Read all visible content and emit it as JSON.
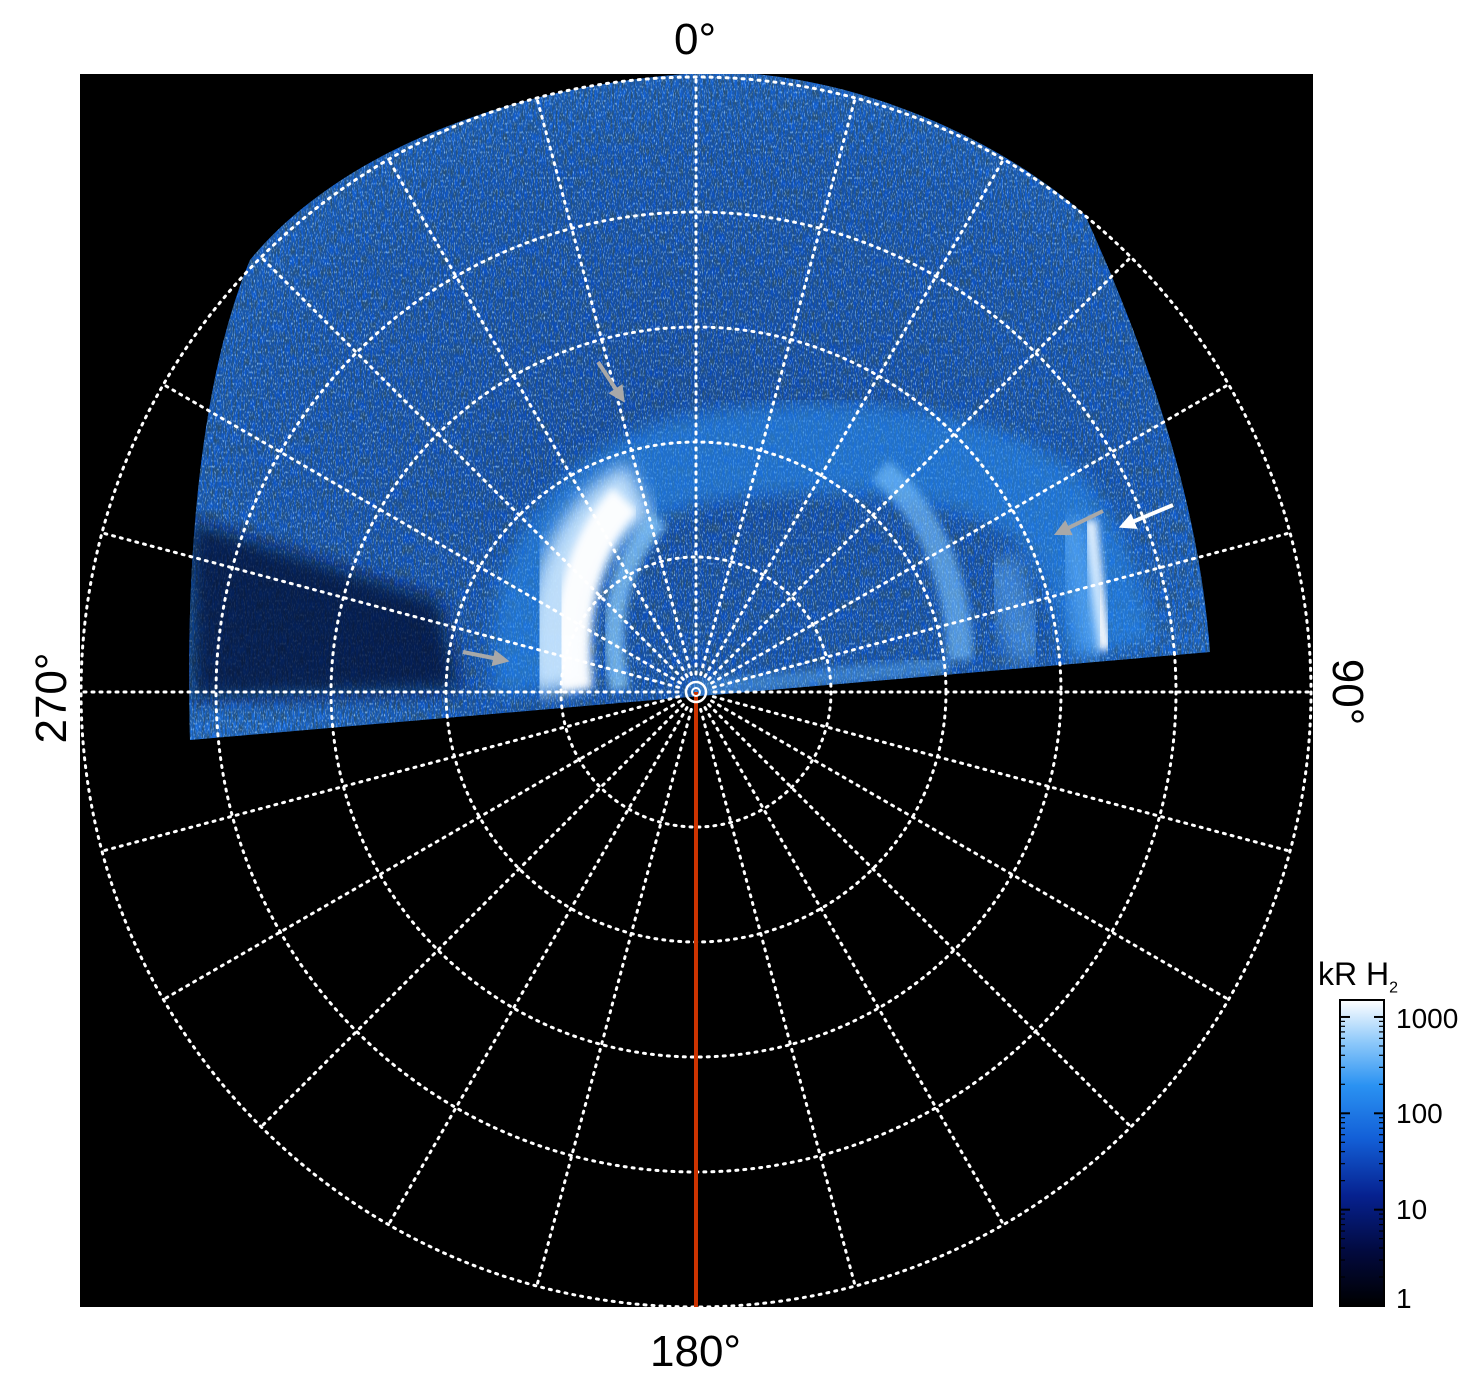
{
  "figure": {
    "longitude_labels": {
      "top": "0°",
      "right": "90°",
      "bottom": "180°",
      "left": "270°"
    },
    "colorbar": {
      "title": "kR H",
      "title_subscript": "2",
      "tick_labels": [
        "1000",
        "100",
        "10",
        "1"
      ],
      "tick_values": [
        1000,
        100,
        10,
        1
      ],
      "scale": "log",
      "range": [
        1,
        1500
      ]
    },
    "grid": {
      "style": "dotted",
      "color": "#ffffff",
      "longitude_step_deg": 15
    },
    "colors": {
      "background": "#000000",
      "central_meridian_line": "#cc3300",
      "aurora_low": "#02083a",
      "aurora_mid": "#1a7fe8",
      "aurora_high": "#ffffff",
      "arrow_gray": "#a8a8a8",
      "arrow_white": "#ffffff"
    },
    "annotations": [
      {
        "name": "gray-arrow-upper-left",
        "color": "gray"
      },
      {
        "name": "gray-arrow-left",
        "color": "gray"
      },
      {
        "name": "gray-arrow-right",
        "color": "gray"
      },
      {
        "name": "white-arrow-right",
        "color": "white"
      }
    ]
  }
}
